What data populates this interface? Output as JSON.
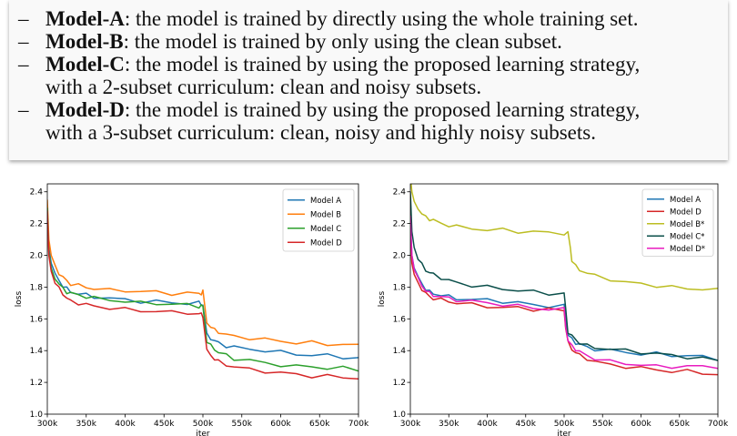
{
  "description": {
    "items": [
      {
        "dash": "–",
        "name": "Model-A",
        "text": ": the model is trained by directly using the whole training set.",
        "cont": ""
      },
      {
        "dash": "–",
        "name": "Model-B",
        "text": ": the model is trained by only using the clean subset.",
        "cont": ""
      },
      {
        "dash": "–",
        "name": "Model-C",
        "text": ": the model is trained by using the proposed learning strategy,",
        "cont": "with a 2-subset curriculum: clean and noisy subsets."
      },
      {
        "dash": "–",
        "name": "Model-D",
        "text": ": the model is trained by using the proposed learning strategy,",
        "cont": "with a 3-subset curriculum: clean, noisy and highly noisy subsets."
      }
    ]
  },
  "chart_data": [
    {
      "type": "line",
      "xlabel": "iter",
      "ylabel": "loss",
      "xlim": [
        300,
        700
      ],
      "ylim": [
        1.0,
        2.45
      ],
      "xticks": [
        300,
        350,
        400,
        450,
        500,
        550,
        600,
        650,
        700
      ],
      "xtick_labels": [
        "300k",
        "350k",
        "400k",
        "450k",
        "500k",
        "550k",
        "600k",
        "650k",
        "700k"
      ],
      "yticks": [
        1.0,
        1.2,
        1.4,
        1.6,
        1.8,
        2.0,
        2.2,
        2.4
      ],
      "ytick_labels": [
        "1.0",
        "1.2",
        "1.4",
        "1.6",
        "1.8",
        "2.0",
        "2.2",
        "2.4"
      ],
      "legend_position": "top-right",
      "series": [
        {
          "name": "Model A",
          "color": "#1f77b4",
          "x": [
            300,
            302,
            305,
            310,
            315,
            320,
            325,
            330,
            340,
            350,
            360,
            380,
            400,
            420,
            440,
            460,
            480,
            495,
            498,
            500,
            505,
            510,
            515,
            520,
            530,
            540,
            560,
            580,
            600,
            620,
            640,
            660,
            680,
            700
          ],
          "y": [
            2.3,
            2.05,
            1.95,
            1.88,
            1.84,
            1.81,
            1.79,
            1.77,
            1.76,
            1.75,
            1.74,
            1.73,
            1.72,
            1.71,
            1.71,
            1.7,
            1.7,
            1.7,
            1.69,
            1.69,
            1.5,
            1.48,
            1.46,
            1.45,
            1.43,
            1.42,
            1.41,
            1.4,
            1.39,
            1.38,
            1.37,
            1.37,
            1.36,
            1.35
          ]
        },
        {
          "name": "Model B",
          "color": "#ff7f0e",
          "x": [
            300,
            302,
            305,
            310,
            315,
            320,
            325,
            330,
            340,
            350,
            360,
            380,
            400,
            420,
            440,
            460,
            480,
            495,
            498,
            500,
            505,
            510,
            515,
            520,
            530,
            540,
            560,
            580,
            600,
            620,
            640,
            660,
            680,
            700
          ],
          "y": [
            2.35,
            2.1,
            2.0,
            1.93,
            1.89,
            1.86,
            1.84,
            1.82,
            1.81,
            1.8,
            1.79,
            1.78,
            1.78,
            1.77,
            1.77,
            1.76,
            1.76,
            1.76,
            1.76,
            1.77,
            1.58,
            1.55,
            1.53,
            1.52,
            1.5,
            1.49,
            1.48,
            1.47,
            1.46,
            1.45,
            1.45,
            1.44,
            1.44,
            1.43
          ]
        },
        {
          "name": "Model C",
          "color": "#2ca02c",
          "x": [
            300,
            302,
            305,
            310,
            315,
            320,
            325,
            330,
            340,
            350,
            360,
            380,
            400,
            420,
            440,
            460,
            480,
            495,
            498,
            500,
            505,
            510,
            515,
            520,
            530,
            540,
            560,
            580,
            600,
            620,
            640,
            660,
            680,
            700
          ],
          "y": [
            2.3,
            2.02,
            1.92,
            1.86,
            1.82,
            1.79,
            1.77,
            1.76,
            1.75,
            1.74,
            1.73,
            1.72,
            1.71,
            1.7,
            1.7,
            1.69,
            1.69,
            1.68,
            1.68,
            1.68,
            1.46,
            1.43,
            1.41,
            1.39,
            1.37,
            1.35,
            1.34,
            1.32,
            1.31,
            1.3,
            1.3,
            1.29,
            1.29,
            1.28
          ]
        },
        {
          "name": "Model D",
          "color": "#d62728",
          "x": [
            300,
            302,
            305,
            310,
            315,
            320,
            325,
            330,
            340,
            350,
            360,
            380,
            400,
            420,
            440,
            460,
            480,
            495,
            498,
            500,
            505,
            510,
            515,
            520,
            530,
            540,
            560,
            580,
            600,
            620,
            640,
            660,
            680,
            700
          ],
          "y": [
            2.28,
            2.0,
            1.9,
            1.83,
            1.79,
            1.76,
            1.73,
            1.71,
            1.7,
            1.69,
            1.68,
            1.67,
            1.66,
            1.65,
            1.65,
            1.64,
            1.64,
            1.63,
            1.63,
            1.62,
            1.4,
            1.37,
            1.35,
            1.33,
            1.31,
            1.3,
            1.28,
            1.27,
            1.26,
            1.25,
            1.24,
            1.24,
            1.23,
            1.23
          ]
        }
      ]
    },
    {
      "type": "line",
      "xlabel": "iter",
      "ylabel": "loss",
      "xlim": [
        300,
        700
      ],
      "ylim": [
        1.0,
        2.45
      ],
      "xticks": [
        300,
        350,
        400,
        450,
        500,
        550,
        600,
        650,
        700
      ],
      "xtick_labels": [
        "300k",
        "350k",
        "400k",
        "450k",
        "500k",
        "550k",
        "600k",
        "650k",
        "700k"
      ],
      "yticks": [
        1.0,
        1.2,
        1.4,
        1.6,
        1.8,
        2.0,
        2.2,
        2.4
      ],
      "ytick_labels": [
        "1.0",
        "1.2",
        "1.4",
        "1.6",
        "1.8",
        "2.0",
        "2.2",
        "2.4"
      ],
      "legend_position": "top-right",
      "series": [
        {
          "name": "Model A",
          "color": "#1f77b4",
          "x": [
            300,
            302,
            305,
            310,
            315,
            320,
            325,
            330,
            340,
            350,
            360,
            380,
            400,
            420,
            440,
            460,
            480,
            500,
            502,
            505,
            510,
            515,
            520,
            530,
            540,
            560,
            580,
            600,
            620,
            640,
            660,
            680,
            700
          ],
          "y": [
            2.2,
            2.0,
            1.92,
            1.86,
            1.82,
            1.79,
            1.77,
            1.76,
            1.75,
            1.74,
            1.73,
            1.72,
            1.72,
            1.71,
            1.7,
            1.69,
            1.68,
            1.68,
            1.6,
            1.5,
            1.47,
            1.45,
            1.44,
            1.42,
            1.41,
            1.4,
            1.39,
            1.38,
            1.38,
            1.37,
            1.37,
            1.36,
            1.35
          ]
        },
        {
          "name": "Model D",
          "color": "#d62728",
          "x": [
            300,
            302,
            305,
            310,
            315,
            320,
            325,
            330,
            340,
            350,
            360,
            380,
            400,
            420,
            440,
            460,
            480,
            500,
            502,
            505,
            510,
            515,
            520,
            530,
            540,
            560,
            580,
            600,
            620,
            640,
            660,
            680,
            700
          ],
          "y": [
            2.15,
            1.95,
            1.88,
            1.82,
            1.79,
            1.76,
            1.74,
            1.73,
            1.72,
            1.71,
            1.7,
            1.69,
            1.68,
            1.67,
            1.67,
            1.66,
            1.66,
            1.65,
            1.55,
            1.45,
            1.41,
            1.39,
            1.37,
            1.35,
            1.33,
            1.31,
            1.3,
            1.29,
            1.28,
            1.27,
            1.27,
            1.26,
            1.25
          ]
        },
        {
          "name": "Model B*",
          "color": "#bcbd22",
          "x": [
            300,
            302,
            305,
            310,
            315,
            320,
            325,
            330,
            340,
            350,
            360,
            380,
            400,
            420,
            440,
            460,
            480,
            500,
            505,
            508,
            510,
            515,
            520,
            530,
            540,
            560,
            580,
            600,
            620,
            640,
            660,
            680,
            700
          ],
          "y": [
            2.5,
            2.4,
            2.34,
            2.3,
            2.26,
            2.24,
            2.23,
            2.22,
            2.2,
            2.19,
            2.18,
            2.17,
            2.16,
            2.16,
            2.15,
            2.15,
            2.14,
            2.14,
            2.14,
            2.05,
            1.97,
            1.93,
            1.91,
            1.89,
            1.87,
            1.85,
            1.83,
            1.82,
            1.81,
            1.8,
            1.79,
            1.79,
            1.78
          ]
        },
        {
          "name": "Model C*",
          "color": "#0b4f4a",
          "x": [
            300,
            302,
            305,
            310,
            315,
            320,
            325,
            330,
            340,
            350,
            360,
            380,
            400,
            420,
            440,
            460,
            480,
            500,
            502,
            505,
            510,
            515,
            520,
            530,
            540,
            560,
            580,
            600,
            620,
            640,
            660,
            680,
            700
          ],
          "y": [
            2.4,
            2.15,
            2.05,
            1.98,
            1.94,
            1.91,
            1.89,
            1.88,
            1.86,
            1.84,
            1.83,
            1.81,
            1.8,
            1.79,
            1.78,
            1.77,
            1.76,
            1.76,
            1.66,
            1.52,
            1.49,
            1.47,
            1.45,
            1.43,
            1.42,
            1.41,
            1.4,
            1.39,
            1.38,
            1.37,
            1.36,
            1.35,
            1.34
          ]
        },
        {
          "name": "Model D*",
          "color": "#e81cbf",
          "x": [
            300,
            302,
            305,
            310,
            315,
            320,
            325,
            330,
            340,
            350,
            360,
            380,
            400,
            420,
            440,
            460,
            480,
            500,
            502,
            505,
            510,
            515,
            520,
            530,
            540,
            560,
            580,
            600,
            620,
            640,
            660,
            680,
            700
          ],
          "y": [
            2.25,
            2.0,
            1.91,
            1.85,
            1.81,
            1.78,
            1.76,
            1.75,
            1.74,
            1.73,
            1.72,
            1.71,
            1.7,
            1.69,
            1.68,
            1.67,
            1.66,
            1.66,
            1.56,
            1.46,
            1.43,
            1.41,
            1.39,
            1.37,
            1.35,
            1.33,
            1.32,
            1.31,
            1.3,
            1.3,
            1.3,
            1.3,
            1.3
          ]
        }
      ]
    }
  ]
}
